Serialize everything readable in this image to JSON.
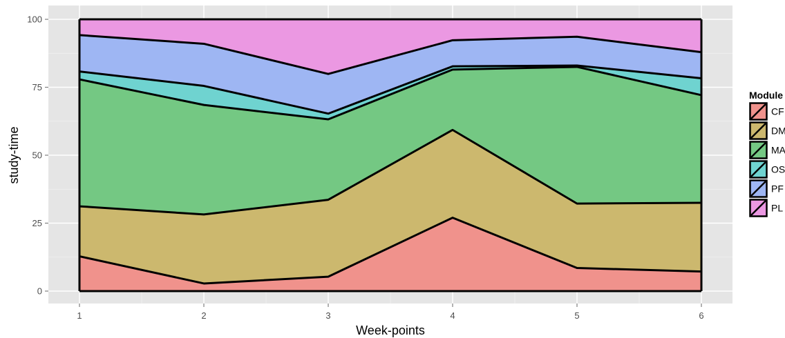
{
  "chart_data": {
    "type": "area",
    "stacked": true,
    "x": [
      1,
      2,
      3,
      4,
      5,
      6
    ],
    "xlabel": "Week-points",
    "ylabel": "study-time",
    "xlim": [
      1,
      6
    ],
    "ylim": [
      0,
      100
    ],
    "xticks": [
      "1",
      "2",
      "3",
      "4",
      "5",
      "6"
    ],
    "yticks": [
      "0",
      "25",
      "50",
      "75",
      "100"
    ],
    "grid": true,
    "legend": {
      "title": "Module",
      "placement": "right"
    },
    "series": [
      {
        "name": "CF",
        "color": "#f0928c",
        "values": [
          12.8,
          2.8,
          5.3,
          27.0,
          8.5,
          7.2
        ]
      },
      {
        "name": "DM",
        "color": "#ccb86e",
        "values": [
          18.4,
          25.4,
          28.3,
          32.3,
          23.7,
          25.3
        ]
      },
      {
        "name": "MA",
        "color": "#74c883",
        "values": [
          46.7,
          40.3,
          29.6,
          22.2,
          50.3,
          39.6
        ]
      },
      {
        "name": "OS",
        "color": "#6fd3d0",
        "values": [
          2.9,
          7.0,
          2.1,
          1.2,
          0.5,
          6.2
        ]
      },
      {
        "name": "PF",
        "color": "#9eb6f3",
        "values": [
          13.4,
          15.5,
          14.6,
          9.6,
          10.6,
          9.6
        ]
      },
      {
        "name": "PL",
        "color": "#eb98e2",
        "values": [
          5.8,
          9.0,
          20.1,
          7.7,
          6.4,
          12.1
        ]
      }
    ]
  }
}
